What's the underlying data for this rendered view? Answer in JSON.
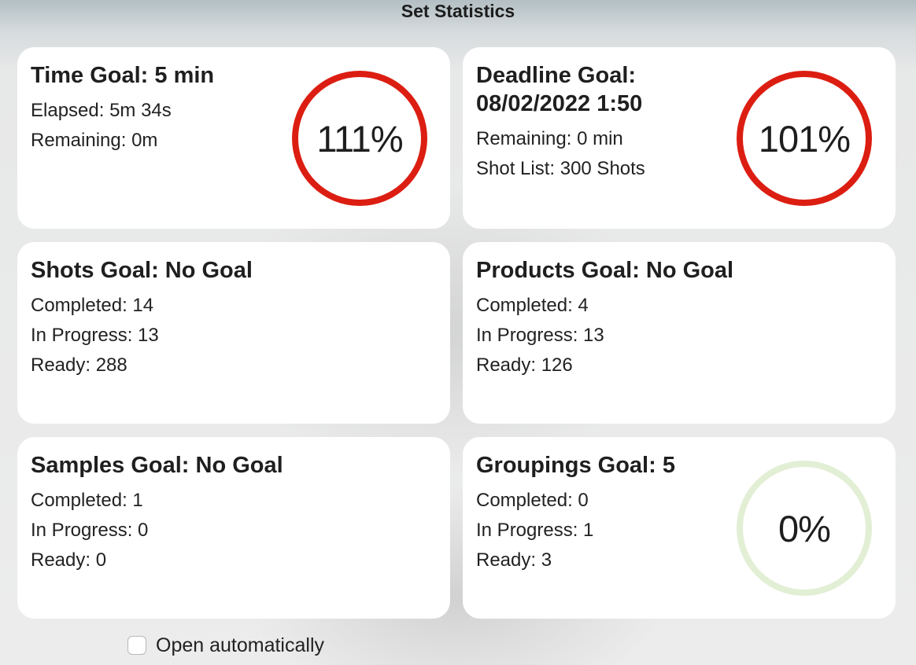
{
  "window": {
    "title": "Set Statistics"
  },
  "cards": {
    "time": {
      "title": "Time Goal: 5 min",
      "lines": [
        "Elapsed: 5m 34s",
        "Remaining: 0m"
      ],
      "progress_label": "111%",
      "progress_percent": 111,
      "ring_color": "#dc1e12"
    },
    "deadline": {
      "title": "Deadline Goal: 08/02/2022 1:50",
      "lines": [
        "Remaining: 0 min",
        "Shot List: 300 Shots"
      ],
      "progress_label": "101%",
      "progress_percent": 101,
      "ring_color": "#dc1e12"
    },
    "shots": {
      "title": "Shots Goal: No Goal",
      "lines": [
        "Completed: 14",
        "In Progress: 13",
        "Ready: 288"
      ]
    },
    "products": {
      "title": "Products Goal: No Goal",
      "lines": [
        "Completed: 4",
        "In Progress: 13",
        "Ready: 126"
      ]
    },
    "samples": {
      "title": "Samples Goal: No Goal",
      "lines": [
        "Completed: 1",
        "In Progress: 0",
        "Ready: 0"
      ]
    },
    "groupings": {
      "title": "Groupings Goal: 5",
      "lines": [
        "Completed: 0",
        "In Progress: 1",
        "Ready: 3"
      ],
      "progress_label": "0%",
      "progress_percent": 0,
      "ring_color": "#e2efd5"
    }
  },
  "footer": {
    "checkbox_label": "Open automatically",
    "checked": false
  }
}
